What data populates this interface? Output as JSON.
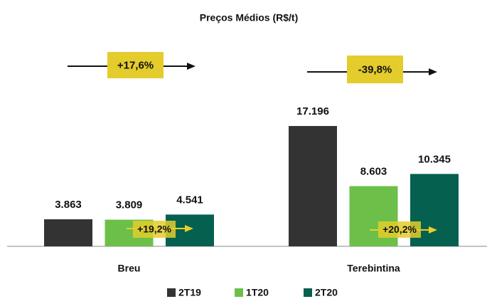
{
  "chart_data": {
    "type": "bar",
    "title": "Preços Médios (R$/t)",
    "categories": [
      "Breu",
      "Terebintina"
    ],
    "series": [
      {
        "name": "2T19",
        "color": "#333333",
        "values": [
          3863,
          17196
        ],
        "value_labels": [
          "3.863",
          "17.196"
        ]
      },
      {
        "name": "1T20",
        "color": "#6cc04a",
        "values": [
          3809,
          8603
        ],
        "value_labels": [
          "3.809",
          "8.603"
        ]
      },
      {
        "name": "2T20",
        "color": "#06604f",
        "values": [
          4541,
          10345
        ],
        "value_labels": [
          "4.541",
          "10.345"
        ]
      }
    ],
    "annotations": [
      "+17,6%",
      "-39,8%",
      "+19,2%",
      "+20,2%"
    ],
    "legend": "bottom"
  }
}
